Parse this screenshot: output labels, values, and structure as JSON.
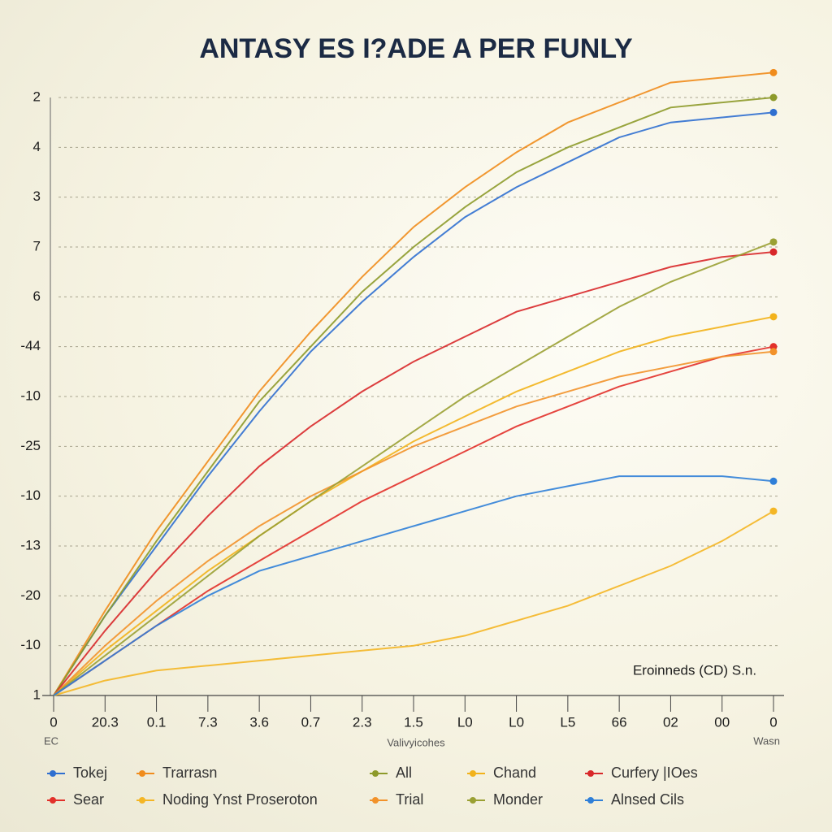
{
  "chart_data": {
    "type": "line",
    "title": "ANTASY ES I?ADE A PER FUNLY",
    "annotation": "Eroinneds (CD) S.n.",
    "xlabel": "Valivyicohes",
    "x_corner_left": "EC",
    "x_corner_right": "Wasn",
    "categories": [
      "0",
      "20.3",
      "0.1",
      "7.3",
      "3.6",
      "0.7",
      "2.3",
      "1.5",
      "L0",
      "L0",
      "L5",
      "66",
      "02",
      "00",
      "0"
    ],
    "ylim": [
      0,
      12.5
    ],
    "yticks": [
      {
        "value": 12,
        "label": "2"
      },
      {
        "value": 11,
        "label": "4"
      },
      {
        "value": 10,
        "label": "3"
      },
      {
        "value": 9,
        "label": "7"
      },
      {
        "value": 8,
        "label": "6"
      },
      {
        "value": 7,
        "label": "-44"
      },
      {
        "value": 6,
        "label": "-10"
      },
      {
        "value": 5,
        "label": "-25"
      },
      {
        "value": 4,
        "label": "-10"
      },
      {
        "value": 3,
        "label": "-13"
      },
      {
        "value": 2,
        "label": "-20"
      },
      {
        "value": 1,
        "label": "-10"
      },
      {
        "value": 0,
        "label": "1"
      }
    ],
    "grid": true,
    "series": [
      {
        "name": "Tokej",
        "color": "#2f6fd0",
        "values": [
          0,
          1.6,
          3.0,
          4.4,
          5.7,
          6.9,
          7.9,
          8.8,
          9.6,
          10.2,
          10.7,
          11.2,
          11.5,
          11.6,
          11.7
        ]
      },
      {
        "name": "Trarrasn",
        "color": "#f08c1c",
        "values": [
          0,
          1.7,
          3.3,
          4.7,
          6.1,
          7.3,
          8.4,
          9.4,
          10.2,
          10.9,
          11.5,
          11.9,
          12.3,
          12.4,
          12.5
        ]
      },
      {
        "name": "All",
        "color": "#8d9a2a",
        "values": [
          0,
          1.6,
          3.1,
          4.5,
          5.9,
          7.0,
          8.1,
          9.0,
          9.8,
          10.5,
          11.0,
          11.4,
          11.8,
          11.9,
          12.0
        ]
      },
      {
        "name": "Chand",
        "color": "#f2b21b",
        "values": [
          0,
          0.9,
          1.7,
          2.5,
          3.2,
          3.9,
          4.5,
          5.1,
          5.6,
          6.1,
          6.5,
          6.9,
          7.2,
          7.4,
          7.6
        ]
      },
      {
        "name": "Curfery |IOes",
        "color": "#d8282a",
        "values": [
          0,
          1.3,
          2.5,
          3.6,
          4.6,
          5.4,
          6.1,
          6.7,
          7.2,
          7.7,
          8.0,
          8.3,
          8.6,
          8.8,
          8.9
        ]
      },
      {
        "name": "Sear",
        "color": "#e2302a",
        "values": [
          0,
          0.7,
          1.4,
          2.1,
          2.7,
          3.3,
          3.9,
          4.4,
          4.9,
          5.4,
          5.8,
          6.2,
          6.5,
          6.8,
          7.0
        ]
      },
      {
        "name": "Noding Ynst Proseroton",
        "color": "#f4b625",
        "values": [
          0,
          0.3,
          0.5,
          0.6,
          0.7,
          0.8,
          0.9,
          1.0,
          1.2,
          1.5,
          1.8,
          2.2,
          2.6,
          3.1,
          3.7
        ]
      },
      {
        "name": "Trial",
        "color": "#f2922a",
        "values": [
          0,
          1.0,
          1.9,
          2.7,
          3.4,
          4.0,
          4.5,
          5.0,
          5.4,
          5.8,
          6.1,
          6.4,
          6.6,
          6.8,
          6.9
        ]
      },
      {
        "name": "Monder",
        "color": "#9aa033",
        "values": [
          0,
          0.8,
          1.6,
          2.4,
          3.2,
          3.9,
          4.6,
          5.3,
          6.0,
          6.6,
          7.2,
          7.8,
          8.3,
          8.7,
          9.1
        ]
      },
      {
        "name": "Alnsed Cils",
        "color": "#2f7fd8",
        "values": [
          0,
          0.7,
          1.4,
          2.0,
          2.5,
          2.8,
          3.1,
          3.4,
          3.7,
          4.0,
          4.2,
          4.4,
          4.4,
          4.4,
          4.3
        ]
      }
    ]
  }
}
